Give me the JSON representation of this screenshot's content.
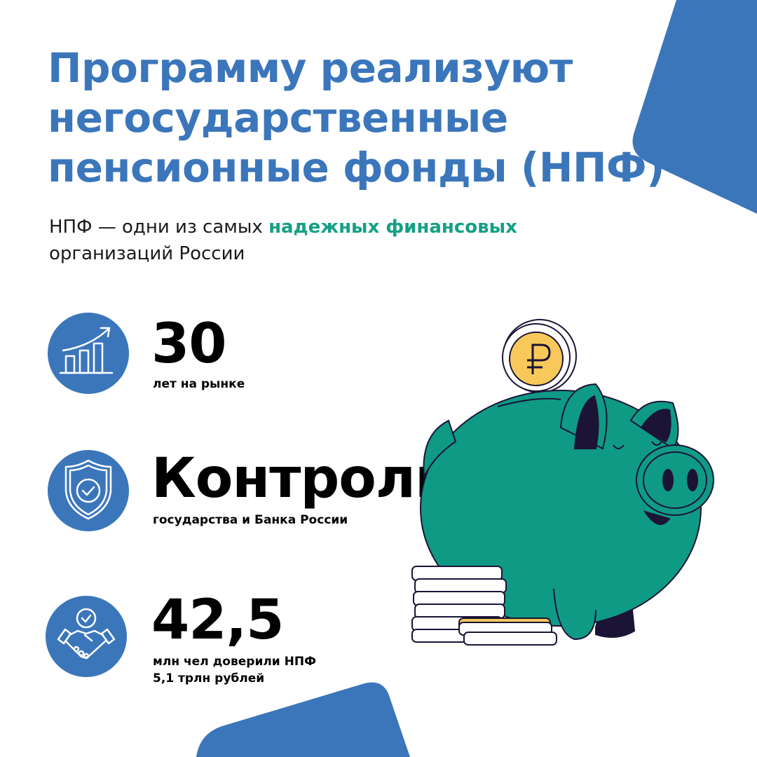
{
  "title": [
    "Программу реализуют",
    "негосударственные",
    "пенсионные фонды (НПФ)"
  ],
  "subtitle": {
    "before": "НПФ — одни из самых ",
    "highlight": "надежных финансовых",
    "after": "организаций России"
  },
  "stats": [
    {
      "icon": "growth-chart-icon",
      "value": "30",
      "caption": [
        "лет на рынке"
      ]
    },
    {
      "icon": "shield-check-icon",
      "value": "Контроль",
      "caption": [
        "государства и Банка России"
      ]
    },
    {
      "icon": "handshake-icon",
      "value": "42,5",
      "caption": [
        "млн чел доверили НПФ",
        "5,1 трлн рублей"
      ]
    }
  ],
  "colors": {
    "blue": "#3b76bb",
    "green": "#14a085",
    "pig": "#0f9a85",
    "dark": "#1b1436",
    "coin": "#f8c95a"
  }
}
